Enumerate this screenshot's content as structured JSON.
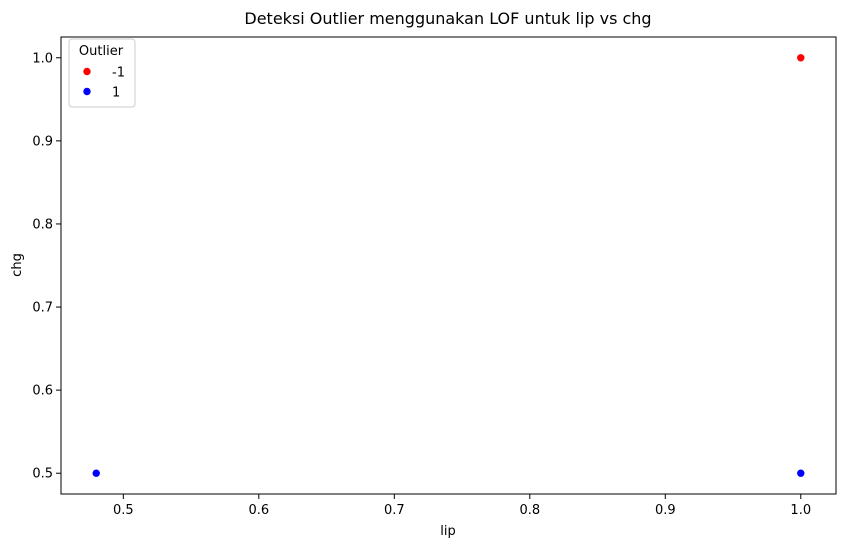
{
  "chart_data": {
    "type": "scatter",
    "title": "Deteksi Outlier menggunakan LOF untuk lip vs chg",
    "xlabel": "lip",
    "ylabel": "chg",
    "xlim": [
      0.454,
      1.026
    ],
    "ylim": [
      0.475,
      1.025
    ],
    "xticks": [
      0.5,
      0.6,
      0.7,
      0.8,
      0.9,
      1.0
    ],
    "xtick_labels": [
      "0.5",
      "0.6",
      "0.7",
      "0.8",
      "0.9",
      "1.0"
    ],
    "yticks": [
      0.5,
      0.6,
      0.7,
      0.8,
      0.9,
      1.0
    ],
    "ytick_labels": [
      "0.5",
      "0.6",
      "0.7",
      "0.8",
      "0.9",
      "1.0"
    ],
    "grid": false,
    "legend": {
      "title": "Outlier",
      "placement": "top-left",
      "entries": [
        {
          "label": "-1",
          "color": "#ff0000"
        },
        {
          "label": "1",
          "color": "#0000ff"
        }
      ]
    },
    "series": [
      {
        "name": "-1",
        "color": "#ff0000",
        "points": [
          {
            "x": 1.0,
            "y": 1.0
          }
        ]
      },
      {
        "name": "1",
        "color": "#0000ff",
        "points": [
          {
            "x": 0.48,
            "y": 0.5
          },
          {
            "x": 1.0,
            "y": 0.5
          }
        ]
      }
    ]
  }
}
